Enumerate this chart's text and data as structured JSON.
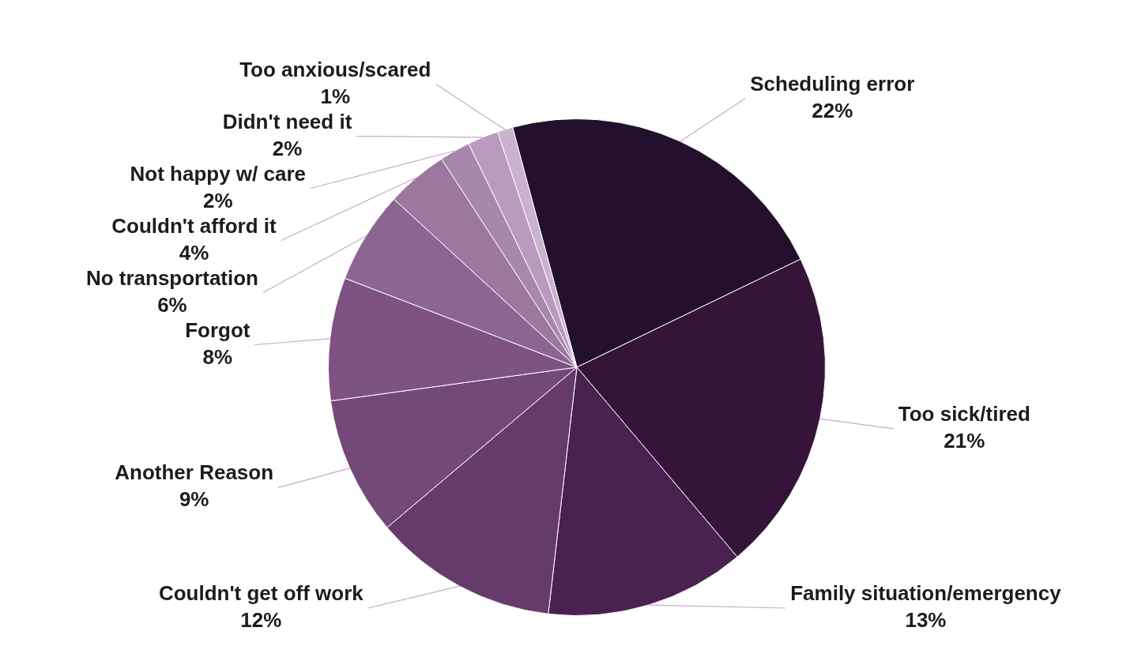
{
  "chart_data": {
    "type": "pie",
    "categories": [
      "Scheduling error",
      "Too sick/tired",
      "Family situation/emergency",
      "Couldn't get off work",
      "Another Reason",
      "Forgot",
      "No transportation",
      "Couldn't afford it",
      "Not happy w/ care",
      "Didn't need it",
      "Too anxious/scared"
    ],
    "values": [
      22,
      21,
      13,
      12,
      9,
      8,
      6,
      4,
      2,
      2,
      1
    ],
    "value_labels": [
      "22%",
      "21%",
      "13%",
      "12%",
      "9%",
      "8%",
      "6%",
      "4%",
      "2%",
      "2%",
      "1%"
    ],
    "colors": [
      "#22102c",
      "#36143a",
      "#4a2150",
      "#673a6c",
      "#744878",
      "#7e5384",
      "#8d6593",
      "#9c779f",
      "#a887ac",
      "#bb9ac0",
      "#cbb3cf"
    ]
  }
}
